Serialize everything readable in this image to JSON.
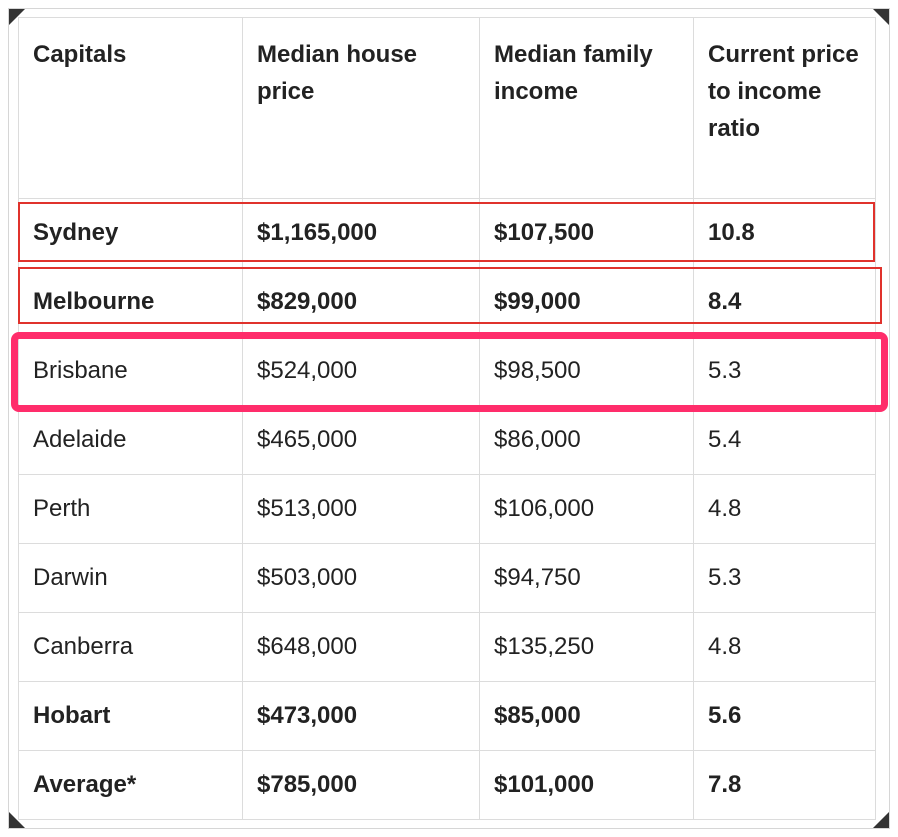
{
  "table": {
    "headers": [
      "Capitals",
      "Median house price",
      "Median family income",
      "Current price to income ratio"
    ],
    "rows": [
      {
        "city": "Sydney",
        "price": "$1,165,000",
        "income": "$107,500",
        "ratio": "10.8",
        "bold": true
      },
      {
        "city": "Melbourne",
        "price": "$829,000",
        "income": "$99,000",
        "ratio": "8.4",
        "bold": true
      },
      {
        "city": "Brisbane",
        "price": "$524,000",
        "income": "$98,500",
        "ratio": "5.3",
        "bold": false
      },
      {
        "city": "Adelaide",
        "price": "$465,000",
        "income": "$86,000",
        "ratio": "5.4",
        "bold": false
      },
      {
        "city": "Perth",
        "price": "$513,000",
        "income": "$106,000",
        "ratio": "4.8",
        "bold": false
      },
      {
        "city": "Darwin",
        "price": "$503,000",
        "income": "$94,750",
        "ratio": "5.3",
        "bold": false
      },
      {
        "city": "Canberra",
        "price": "$648,000",
        "income": "$135,250",
        "ratio": "4.8",
        "bold": false
      },
      {
        "city": "Hobart",
        "price": "$473,000",
        "income": "$85,000",
        "ratio": "5.6",
        "bold": true
      },
      {
        "city": "Average*",
        "price": "$785,000",
        "income": "$101,000",
        "ratio": "7.8",
        "bold": true
      }
    ]
  },
  "highlights": {
    "red_outline_color": "#e0322c",
    "pink_outline_color": "#ff2d6b",
    "red_outlined_rows": [
      "Sydney",
      "Melbourne"
    ],
    "pink_outlined_rows": [
      "Brisbane"
    ]
  }
}
